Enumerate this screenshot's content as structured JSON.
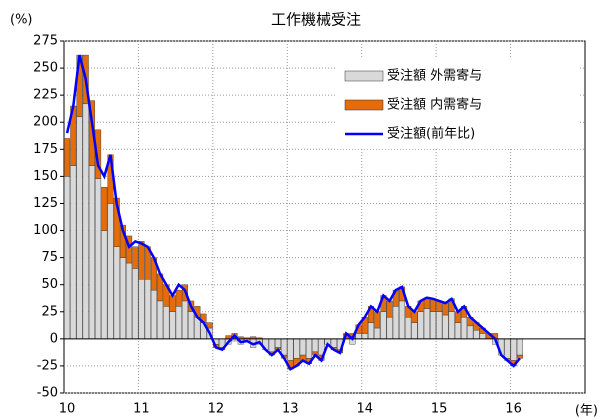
{
  "chart_data": {
    "type": "bar-line",
    "title": "工作機械受注",
    "y_label": "(%)",
    "x_label": "(年)",
    "categories": [
      "10",
      null,
      null,
      null,
      null,
      null,
      null,
      null,
      null,
      null,
      null,
      null,
      "11",
      null,
      null,
      null,
      null,
      null,
      null,
      null,
      null,
      null,
      null,
      null,
      "12",
      null,
      null,
      null,
      null,
      null,
      null,
      null,
      null,
      null,
      null,
      null,
      "13",
      null,
      null,
      null,
      null,
      null,
      null,
      null,
      null,
      null,
      null,
      null,
      "14",
      null,
      null,
      null,
      null,
      null,
      null,
      null,
      null,
      null,
      null,
      null,
      "15",
      null,
      null,
      null,
      null,
      null,
      null,
      null,
      null,
      null,
      null,
      null,
      "16",
      null,
      null,
      null,
      null,
      null,
      null,
      null,
      null,
      null,
      null,
      null
    ],
    "series": [
      {
        "name": "受注額 外需寄与",
        "kind": "bar",
        "color": "#d9d9d9",
        "values": [
          150,
          160,
          205,
          217,
          160,
          148,
          100,
          125,
          85,
          75,
          70,
          65,
          55,
          55,
          45,
          35,
          30,
          25,
          30,
          35,
          25,
          20,
          15,
          10,
          -5,
          -8,
          -5,
          -2,
          -5,
          -3,
          -8,
          -5,
          -10,
          -12,
          -8,
          -15,
          -20,
          -18,
          -15,
          -18,
          -12,
          -15,
          -5,
          -8,
          -10,
          0,
          -5,
          5,
          5,
          15,
          10,
          25,
          20,
          30,
          35,
          20,
          15,
          25,
          28,
          25,
          25,
          22,
          25,
          15,
          20,
          12,
          8,
          5,
          0,
          -5,
          -15,
          -18,
          -20,
          -15,
          null,
          null,
          null,
          null,
          null,
          null,
          null,
          null,
          null,
          null
        ]
      },
      {
        "name": "受注額 内需寄与",
        "kind": "bar",
        "color": "#e46c0a",
        "values": [
          35,
          55,
          57,
          45,
          60,
          45,
          40,
          45,
          45,
          30,
          25,
          20,
          35,
          30,
          30,
          25,
          20,
          15,
          15,
          15,
          10,
          10,
          8,
          5,
          -3,
          -2,
          3,
          5,
          2,
          1,
          2,
          1,
          0,
          -3,
          -2,
          -3,
          -8,
          -7,
          -5,
          -5,
          -3,
          -5,
          0,
          -2,
          -3,
          5,
          5,
          8,
          15,
          15,
          15,
          15,
          15,
          15,
          13,
          10,
          10,
          10,
          10,
          12,
          10,
          11,
          12,
          10,
          10,
          8,
          7,
          5,
          5,
          5,
          0,
          -2,
          -5,
          -3,
          null,
          null,
          null,
          null,
          null,
          null,
          null,
          null,
          null,
          null
        ]
      },
      {
        "name": "受注額(前年比)",
        "kind": "line",
        "color": "#0000ff",
        "values": [
          190,
          215,
          262,
          240,
          200,
          160,
          150,
          170,
          125,
          100,
          85,
          90,
          88,
          85,
          75,
          60,
          50,
          40,
          50,
          45,
          30,
          20,
          15,
          5,
          -8,
          -10,
          -3,
          3,
          -3,
          -2,
          -5,
          -3,
          -10,
          -15,
          -10,
          -18,
          -28,
          -25,
          -20,
          -23,
          -15,
          -20,
          -5,
          -10,
          -13,
          5,
          0,
          13,
          20,
          30,
          25,
          40,
          35,
          45,
          48,
          30,
          25,
          35,
          38,
          37,
          35,
          33,
          37,
          25,
          30,
          20,
          15,
          10,
          5,
          0,
          -15,
          -20,
          -25,
          -18,
          null,
          null,
          null,
          null,
          null,
          null,
          null,
          null,
          null,
          null
        ]
      }
    ],
    "ylim": [
      -50,
      275
    ],
    "yticks": [
      -50,
      -25,
      0,
      25,
      50,
      75,
      100,
      125,
      150,
      175,
      200,
      225,
      250,
      275
    ],
    "grid": true
  }
}
